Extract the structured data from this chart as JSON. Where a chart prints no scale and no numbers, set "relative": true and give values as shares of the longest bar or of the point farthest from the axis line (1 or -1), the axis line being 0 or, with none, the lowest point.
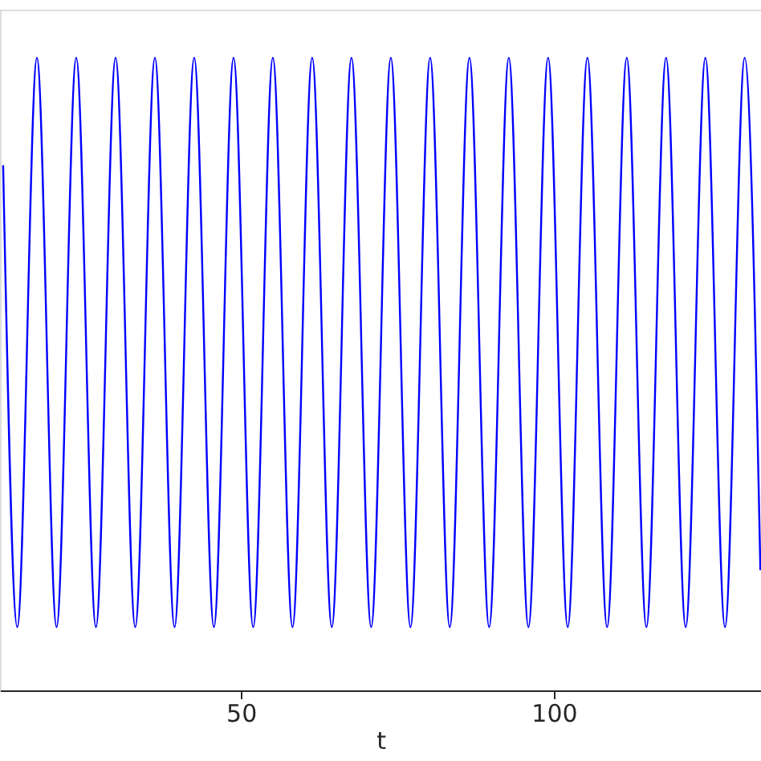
{
  "chart_data": {
    "type": "line",
    "xlabel": "t",
    "relative": true,
    "xlim": [
      11.5,
      133.1
    ],
    "xticks": [
      50,
      100
    ],
    "grid": false,
    "tick_labels": "x",
    "marker": "none",
    "line_style": "solid",
    "series": [
      {
        "color": "#0000ff",
        "x": [
          12.0,
          14.26,
          17.4,
          20.54,
          23.68,
          26.83,
          29.97,
          33.11,
          36.25,
          39.39,
          42.53,
          45.68,
          48.82,
          51.96,
          55.1,
          58.24,
          61.38,
          64.52,
          67.66,
          70.81,
          73.95,
          77.09,
          80.23,
          83.37,
          86.51,
          89.66,
          92.8,
          95.94,
          99.08,
          102.22,
          105.36,
          108.51,
          111.65,
          114.79,
          117.93,
          121.07,
          124.21,
          127.35,
          130.49,
          133.0
        ],
        "values": [
          0.83,
          0.1,
          1,
          0.1,
          1,
          0.1,
          1,
          0.1,
          1,
          0.1,
          1,
          0.1,
          1,
          0.1,
          1,
          0.1,
          1,
          0.1,
          1,
          0.1,
          1,
          0.1,
          1,
          0.1,
          1,
          0.1,
          1,
          0.1,
          1,
          0.1,
          1,
          0.1,
          1,
          0.1,
          1,
          0.1,
          1,
          0.1,
          1,
          0.19
        ]
      }
    ]
  }
}
